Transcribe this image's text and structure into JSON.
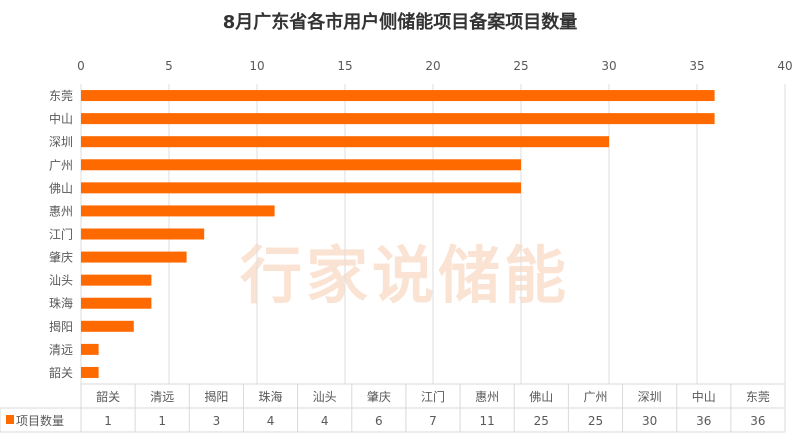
{
  "watermark": "行家说储能",
  "chart_data": {
    "type": "bar",
    "orientation": "horizontal",
    "title": "8月广东省各市用户侧储能项目备案项目数量",
    "categories": [
      "韶关",
      "清远",
      "揭阳",
      "珠海",
      "汕头",
      "肇庆",
      "江门",
      "惠州",
      "佛山",
      "广州",
      "深圳",
      "中山",
      "东莞"
    ],
    "series": [
      {
        "name": "项目数量",
        "values": [
          1,
          1,
          3,
          4,
          4,
          6,
          7,
          11,
          25,
          25,
          30,
          36,
          36
        ],
        "color": "#ff6a00"
      }
    ],
    "xlim": [
      0,
      40
    ],
    "xticks": [
      0,
      5,
      10,
      15,
      20,
      25,
      30,
      35,
      40
    ],
    "grid": true,
    "data_table": true
  }
}
